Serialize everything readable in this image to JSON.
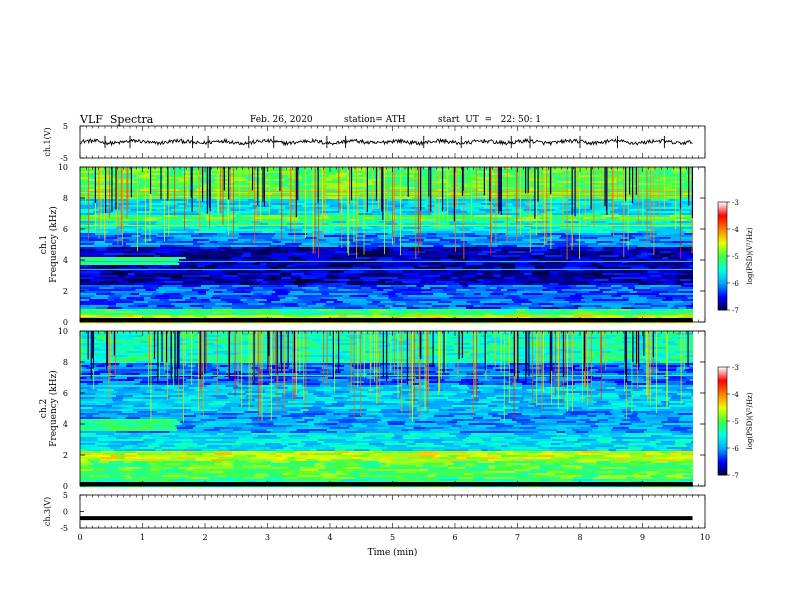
{
  "header": {
    "title": "VLF  Spectra",
    "date": "Feb. 26, 2020",
    "station": "station= ATH",
    "start": "start  UT  =   22: 50: 1"
  },
  "chart_data": [
    {
      "type": "line",
      "panel": "ch1-waveform",
      "ylabel": "ch.1(V)",
      "ylim": [
        -5,
        5
      ],
      "yticks": [
        "5",
        "-5"
      ],
      "x_range": [
        0,
        9.8
      ],
      "amplitude_v_approx": 0.6,
      "spikes_min": [
        0.4,
        0.8,
        1.8,
        2.05,
        2.7,
        3.1,
        3.95,
        4.25,
        5.5,
        6.1,
        6.9,
        7.2,
        8.0,
        8.6,
        9.35
      ]
    },
    {
      "type": "heatmap",
      "panel": "ch1-spectrogram",
      "ylabel": "Frequency  (kHz)",
      "channel_label": "ch.1",
      "ylim": [
        0,
        10
      ],
      "yticks": [
        "0",
        "2",
        "4",
        "6",
        "8",
        "10"
      ],
      "x_range_min": [
        0,
        9.8
      ],
      "bands_khz_log_psd": [
        {
          "f": [
            0,
            0.4
          ],
          "v": -4.6
        },
        {
          "f": [
            0.4,
            0.9
          ],
          "v": -5.2
        },
        {
          "f": [
            0.9,
            2.4
          ],
          "v": -6.2
        },
        {
          "f": [
            2.4,
            4.8
          ],
          "v": -6.7
        },
        {
          "f": [
            4.8,
            5.8
          ],
          "v": -6.1
        },
        {
          "f": [
            5.8,
            6.5
          ],
          "v": -5.6
        },
        {
          "f": [
            6.5,
            6.9
          ],
          "v": -5.0
        },
        {
          "f": [
            6.9,
            8.0
          ],
          "v": -5.7
        },
        {
          "f": [
            8.0,
            10
          ],
          "v": -5.0
        }
      ],
      "patch_before_min_1_5": {
        "f": [
          3.7,
          4.2
        ],
        "v": -5.2
      }
    },
    {
      "type": "heatmap",
      "panel": "ch2-spectrogram",
      "ylabel": "Frequency  (kHz)",
      "channel_label": "ch.2",
      "ylim": [
        0,
        10
      ],
      "yticks": [
        "0",
        "2",
        "4",
        "6",
        "8",
        "10"
      ],
      "x_range_min": [
        0,
        9.8
      ],
      "bands_khz_log_psd": [
        {
          "f": [
            0,
            0.4
          ],
          "v": -5.3
        },
        {
          "f": [
            0.4,
            1.6
          ],
          "v": -5.0
        },
        {
          "f": [
            1.6,
            2.3
          ],
          "v": -4.6
        },
        {
          "f": [
            2.3,
            3.4
          ],
          "v": -5.7
        },
        {
          "f": [
            3.4,
            4.8
          ],
          "v": -6.0
        },
        {
          "f": [
            4.8,
            6.5
          ],
          "v": -5.8
        },
        {
          "f": [
            6.5,
            8.0
          ],
          "v": -6.2
        },
        {
          "f": [
            8.0,
            10
          ],
          "v": -5.4
        }
      ],
      "patch_before_min_1_5": {
        "f": [
          3.5,
          4.3
        ],
        "v": -5.2
      }
    },
    {
      "type": "line",
      "panel": "ch3-waveform",
      "ylabel": "ch.3(V)",
      "ylim": [
        -5,
        5
      ],
      "yticks": [
        "5",
        "0",
        "-5"
      ],
      "x_range": [
        0,
        9.8
      ],
      "constant_v": -2
    }
  ],
  "x_axis": {
    "label": "Time  (min)",
    "range": [
      0,
      10
    ],
    "ticks": [
      "0",
      "1",
      "2",
      "3",
      "4",
      "5",
      "6",
      "7",
      "8",
      "9",
      "10"
    ]
  },
  "colorbar": {
    "label": "log(PSD)(V²/Hz)",
    "range": [
      -7,
      -3
    ],
    "ticks": [
      "-3",
      "-4",
      "-5",
      "-6",
      "-7"
    ],
    "colors": [
      "#00003a",
      "#0000ff",
      "#00a8ff",
      "#00ffe0",
      "#40ff40",
      "#e8ff00",
      "#ff8000",
      "#ff0000",
      "#ffffff"
    ]
  }
}
